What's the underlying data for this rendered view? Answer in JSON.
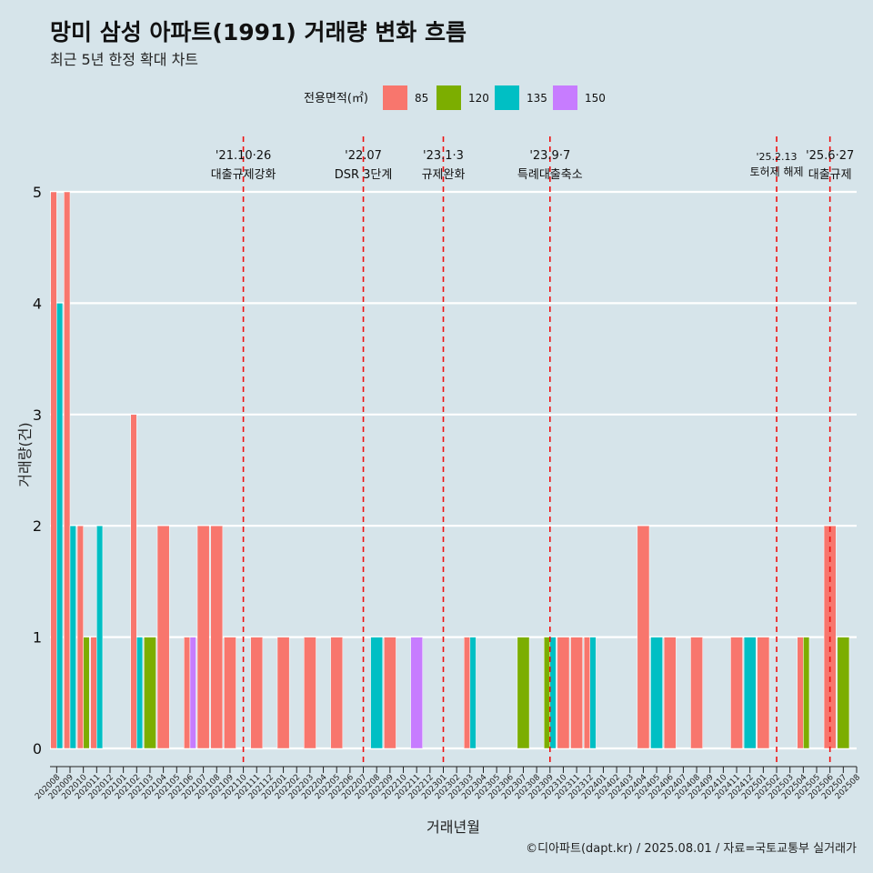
{
  "title": "망미 삼성 아파트(1991) 거래량 변화 흐름",
  "subtitle": "최근 5년 한정 확대 차트",
  "caption": "©디아파트(dapt.kr) / 2025.08.01 / 자료=국토교통부 실거래가",
  "chart_data": {
    "type": "bar",
    "xlabel": "거래년월",
    "ylabel": "거래량(건)",
    "ylim": [
      0,
      5
    ],
    "yticks": [
      0,
      1,
      2,
      3,
      4,
      5
    ],
    "legend": {
      "title": "전용면적(㎡)",
      "placement": "top"
    },
    "categories": [
      "202008",
      "202009",
      "202010",
      "202011",
      "202012",
      "202101",
      "202102",
      "202103",
      "202104",
      "202105",
      "202106",
      "202107",
      "202108",
      "202109",
      "202110",
      "202111",
      "202112",
      "202201",
      "202202",
      "202203",
      "202204",
      "202205",
      "202206",
      "202207",
      "202208",
      "202209",
      "202210",
      "202211",
      "202212",
      "202301",
      "202302",
      "202303",
      "202304",
      "202305",
      "202306",
      "202307",
      "202308",
      "202309",
      "202310",
      "202311",
      "202312",
      "202401",
      "202402",
      "202403",
      "202404",
      "202405",
      "202406",
      "202407",
      "202408",
      "202409",
      "202410",
      "202411",
      "202412",
      "202501",
      "202502",
      "202503",
      "202504",
      "202505",
      "202506",
      "202507",
      "202508"
    ],
    "series": [
      {
        "name": "85",
        "color": "#F8766D",
        "points": [
          [
            "202008",
            5
          ],
          [
            "202009",
            5
          ],
          [
            "202010",
            2
          ],
          [
            "202011",
            1
          ],
          [
            "202102",
            3
          ],
          [
            "202104",
            2
          ],
          [
            "202106",
            1
          ],
          [
            "202107",
            2
          ],
          [
            "202108",
            2
          ],
          [
            "202109",
            1
          ],
          [
            "202111",
            1
          ],
          [
            "202201",
            1
          ],
          [
            "202203",
            1
          ],
          [
            "202205",
            1
          ],
          [
            "202209",
            1
          ],
          [
            "202303",
            1
          ],
          [
            "202310",
            1
          ],
          [
            "202311",
            1
          ],
          [
            "202312",
            1
          ],
          [
            "202404",
            2
          ],
          [
            "202406",
            1
          ],
          [
            "202408",
            1
          ],
          [
            "202411",
            1
          ],
          [
            "202501",
            1
          ],
          [
            "202504",
            1
          ],
          [
            "202506",
            2
          ]
        ]
      },
      {
        "name": "120",
        "color": "#7CAE00",
        "points": [
          [
            "202010",
            1
          ],
          [
            "202103",
            1
          ],
          [
            "202307",
            1
          ],
          [
            "202309",
            1
          ],
          [
            "202504",
            1
          ],
          [
            "202507",
            1
          ]
        ]
      },
      {
        "name": "135",
        "color": "#00BFC4",
        "points": [
          [
            "202008",
            4
          ],
          [
            "202009",
            2
          ],
          [
            "202011",
            2
          ],
          [
            "202102",
            1
          ],
          [
            "202208",
            1
          ],
          [
            "202303",
            1
          ],
          [
            "202309",
            1
          ],
          [
            "202312",
            1
          ],
          [
            "202405",
            1
          ],
          [
            "202412",
            1
          ]
        ]
      },
      {
        "name": "150",
        "color": "#C77CFF",
        "points": [
          [
            "202106",
            1
          ],
          [
            "202211",
            1
          ]
        ]
      }
    ],
    "annotations": [
      {
        "category": "202110",
        "line1": "'21.10·26",
        "line2": "대출규제강화"
      },
      {
        "category": "202207",
        "line1": "'22.07",
        "line2": "DSR 3단계"
      },
      {
        "category": "202301",
        "line1": "'23.1·3",
        "line2": "규제완화"
      },
      {
        "category": "202309",
        "line1": "'23.9·7",
        "line2": "특례대출축소"
      },
      {
        "category": "202502",
        "line1": "'25.2.13",
        "line2": "토허제 해제"
      },
      {
        "category": "202506",
        "line1": "'25.6·27",
        "line2": "대출규제"
      }
    ]
  }
}
